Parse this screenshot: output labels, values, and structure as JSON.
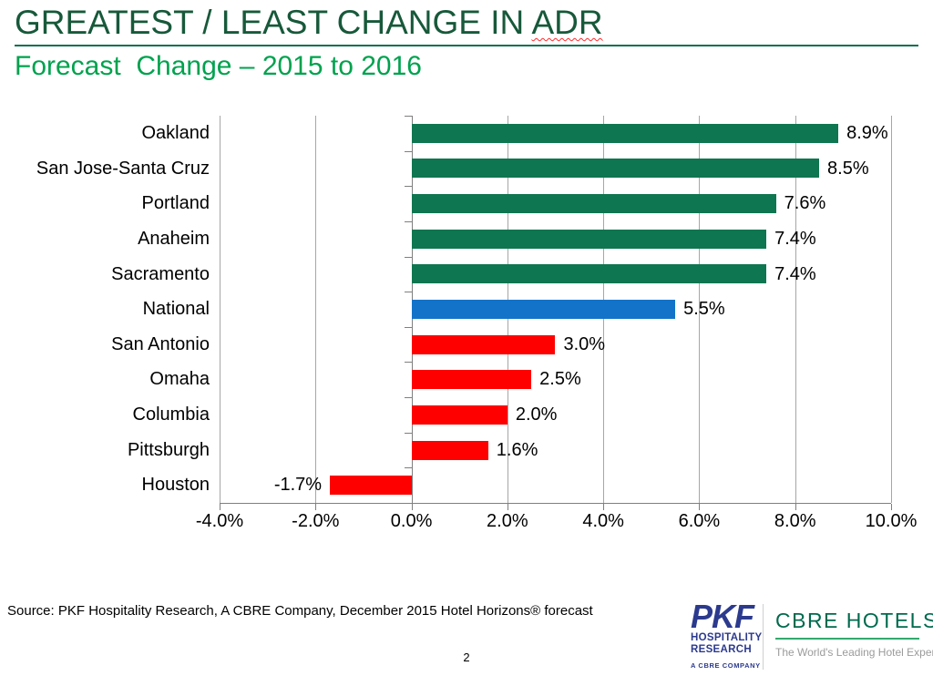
{
  "header": {
    "title_main": "GREATEST / LEAST CHANGE IN ",
    "title_highlight": "ADR",
    "subtitle": "Forecast  Change – 2015 to 2016"
  },
  "chart_data": {
    "type": "bar",
    "orientation": "horizontal",
    "categories": [
      "Oakland",
      "San Jose-Santa Cruz",
      "Portland",
      "Anaheim",
      "Sacramento",
      "National",
      "San Antonio",
      "Omaha",
      "Columbia",
      "Pittsburgh",
      "Houston"
    ],
    "values": [
      8.9,
      8.5,
      7.6,
      7.4,
      7.4,
      5.5,
      3.0,
      2.5,
      2.0,
      1.6,
      -1.7
    ],
    "labels": [
      "8.9%",
      "8.5%",
      "7.6%",
      "7.4%",
      "7.4%",
      "5.5%",
      "3.0%",
      "2.5%",
      "2.0%",
      "1.6%",
      "-1.7%"
    ],
    "bar_colors": [
      "green",
      "green",
      "green",
      "green",
      "green",
      "blue",
      "red",
      "red",
      "red",
      "red",
      "red"
    ],
    "colors": {
      "green": "#0E7650",
      "blue": "#1273C8",
      "red": "#FF0000"
    },
    "xlim": [
      -4,
      10
    ],
    "xstep": 2,
    "x_tick_labels": [
      "-4.0%",
      "-2.0%",
      "0.0%",
      "2.0%",
      "4.0%",
      "6.0%",
      "8.0%",
      "10.0%"
    ],
    "grid": true,
    "legend": false,
    "title": "",
    "xlabel": "",
    "ylabel": ""
  },
  "footer": {
    "source": "Source: PKF Hospitality Research, A CBRE Company, December 2015 Hotel Horizons® forecast",
    "page_number": "2",
    "pkf_logo": {
      "name": "PKF",
      "line1": "HOSPITALITY",
      "line2": "RESEARCH",
      "sub": "A CBRE COMPANY"
    },
    "cbre_logo": {
      "name": "CBRE HOTELS",
      "tagline": "The World's Leading Hotel Experts."
    }
  }
}
